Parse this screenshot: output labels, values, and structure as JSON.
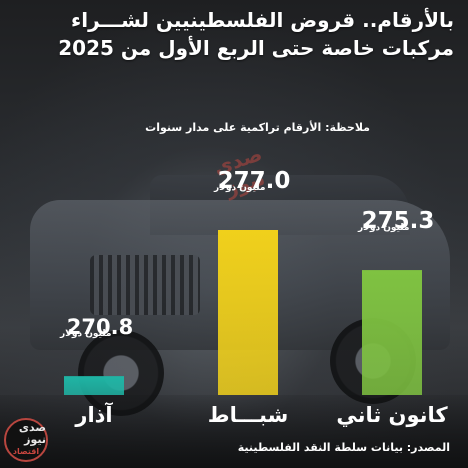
{
  "title_lines": [
    "بالأرقام.. قروض الفلسطينيين لشـــراء",
    "مركبات خاصة حتى الربع الأول من 2025"
  ],
  "note": "ملاحظة: الأرقام تراكمية على مدار سنوات",
  "source": "المصدر: بيانات سلطة النقد الفلسطينية",
  "watermark": "صدى نيوز",
  "logo": {
    "name": "صدى نيوز",
    "sub": "اقتصاد"
  },
  "chart_data": {
    "type": "bar",
    "categories": [
      "آذار",
      "شبـــاط",
      "كانون ثاني"
    ],
    "values": [
      270.8,
      277.0,
      275.3
    ],
    "value_labels": [
      "270.8",
      "277.0",
      "275.3"
    ],
    "unit": "مليون دولار",
    "colors": [
      "#1fb5a5",
      "#f0d01b",
      "#7fc241"
    ],
    "ylim": [
      0,
      277.0
    ],
    "grid": false,
    "legend": "none"
  }
}
